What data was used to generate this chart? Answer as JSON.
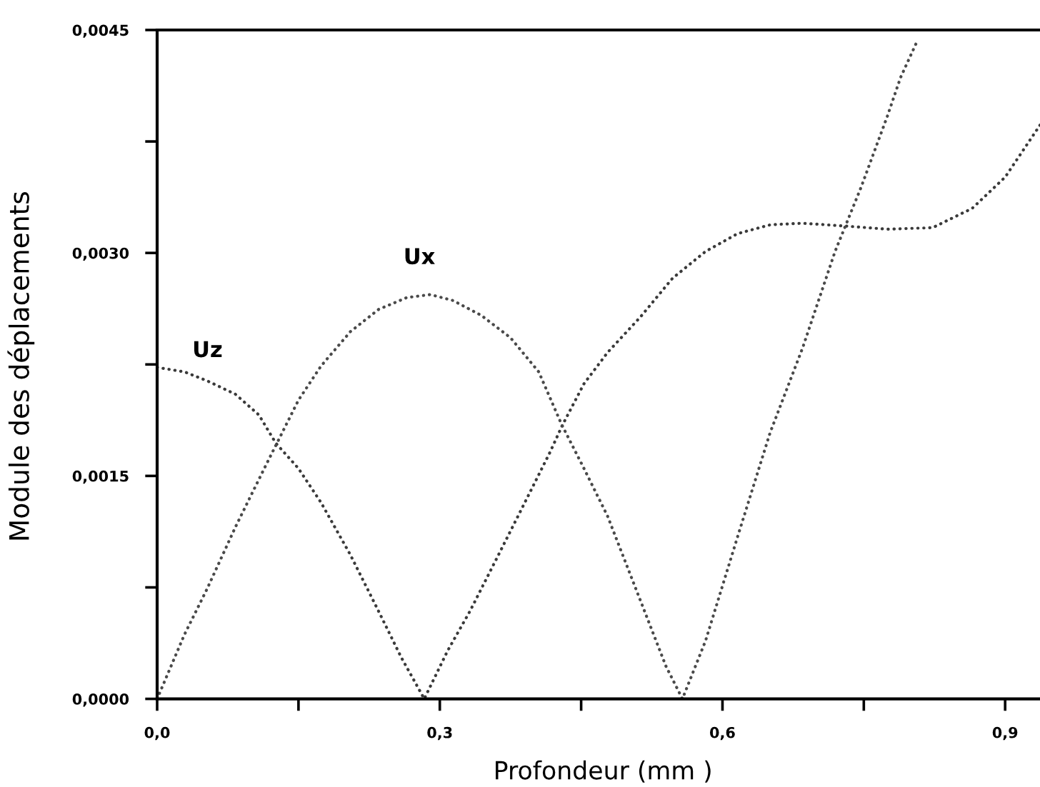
{
  "chart_data": {
    "type": "line",
    "xlabel": "Profondeur (mm )",
    "ylabel": "Module des déplacements",
    "xlim": [
      0,
      0.937
    ],
    "ylim": [
      0,
      0.0045
    ],
    "xticks": [
      {
        "value": 0,
        "label": "0,0"
      },
      {
        "value": 0.15,
        "label": null
      },
      {
        "value": 0.3,
        "label": "0,3"
      },
      {
        "value": 0.45,
        "label": null
      },
      {
        "value": 0.6,
        "label": "0,6"
      },
      {
        "value": 0.75,
        "label": null
      },
      {
        "value": 0.9,
        "label": "0,9"
      }
    ],
    "yticks": [
      {
        "value": 0,
        "label": "0,0000"
      },
      {
        "value": 0.00075,
        "label": null
      },
      {
        "value": 0.0015,
        "label": "0,0015"
      },
      {
        "value": 0.00225,
        "label": null
      },
      {
        "value": 0.003,
        "label": "0,0030"
      },
      {
        "value": 0.00375,
        "label": null
      },
      {
        "value": 0.0045,
        "label": "0,0045"
      }
    ],
    "line_style": "dotted",
    "series": [
      {
        "name": "Uz",
        "color": "#3a3a3a",
        "x": [
          0,
          0.029,
          0.053,
          0.083,
          0.108,
          0.126,
          0.15,
          0.174,
          0.205,
          0.235,
          0.259,
          0.2835,
          0.308,
          0.332,
          0.356,
          0.387,
          0.417,
          0.43,
          0.453,
          0.478,
          0.513,
          0.547,
          0.582,
          0.616,
          0.651,
          0.685,
          0.733,
          0.775,
          0.823,
          0.865,
          0.9,
          0.937
        ],
        "values": [
          0.00223,
          0.0022,
          0.00214,
          0.00205,
          0.00191,
          0.00172,
          0.00155,
          0.00132,
          0.00097,
          0.00059,
          0.00028,
          0,
          0.00032,
          0.00059,
          0.00089,
          0.00128,
          0.00166,
          0.00184,
          0.00212,
          0.00233,
          0.00257,
          0.00283,
          0.00301,
          0.00313,
          0.00319,
          0.0032,
          0.00318,
          0.00316,
          0.00317,
          0.0033,
          0.00351,
          0.00386
        ]
      },
      {
        "name": "Ux",
        "color": "#4a4a4a",
        "x": [
          0,
          0.0288,
          0.053,
          0.0834,
          0.1137,
          0.15,
          0.174,
          0.205,
          0.235,
          0.265,
          0.29,
          0.314,
          0.344,
          0.375,
          0.405,
          0.429,
          0.453,
          0.478,
          0.513,
          0.54,
          0.5575,
          0.582,
          0.616,
          0.6505,
          0.685,
          0.7195,
          0.747,
          0.775,
          0.789,
          0.807
        ],
        "values": [
          0,
          0.00043,
          0.00074,
          0.00116,
          0.00155,
          0.00201,
          0.00224,
          0.00247,
          0.00262,
          0.0027,
          0.00272,
          0.00268,
          0.00258,
          0.00243,
          0.0022,
          0.00185,
          0.00155,
          0.00123,
          0.00066,
          0.00022,
          0,
          0.00039,
          0.00109,
          0.00179,
          0.00236,
          0.00301,
          0.00344,
          0.00392,
          0.00418,
          0.00443
        ]
      }
    ]
  }
}
